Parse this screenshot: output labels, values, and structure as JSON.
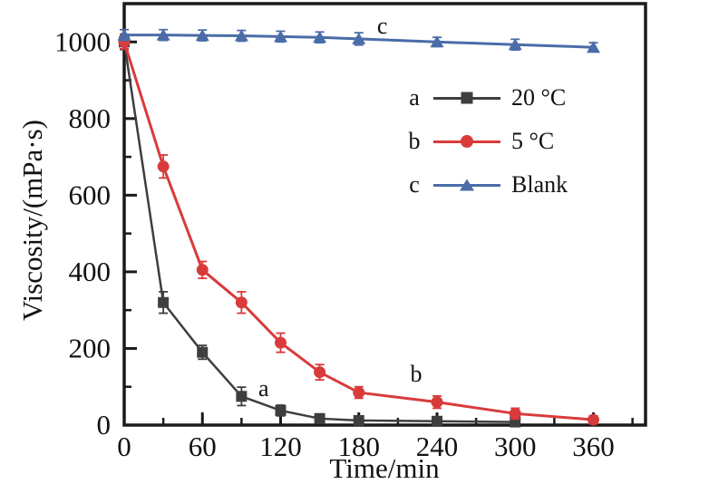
{
  "figure": {
    "background": "#ffffff",
    "frame_color": "#1a1a1a",
    "text_color": "#111111"
  },
  "chart_data": {
    "type": "line",
    "title": "",
    "xlabel": "Time/min",
    "ylabel": "Viscosity/(mPa·s)",
    "xlim": [
      0,
      400
    ],
    "ylim": [
      0,
      1100
    ],
    "x_major_ticks": [
      0,
      60,
      120,
      180,
      240,
      300,
      360
    ],
    "x_minor_ticks": [
      30,
      90,
      150,
      210,
      270,
      330,
      390
    ],
    "y_major_ticks": [
      0,
      200,
      400,
      600,
      800,
      1000
    ],
    "y_minor_ticks": [
      100,
      300,
      500,
      700,
      900,
      1100
    ],
    "grid": false,
    "legend_position": "upper-right-inside",
    "series": [
      {
        "id": "a",
        "name": "20 °C",
        "marker": "square",
        "color": "#3f3e3e",
        "x": [
          0,
          30,
          60,
          90,
          120,
          150,
          180,
          240,
          300
        ],
        "y": [
          1000,
          320,
          190,
          75,
          38,
          17,
          12,
          10,
          8
        ],
        "yerr": [
          20,
          28,
          18,
          24,
          14,
          12,
          10,
          10,
          8
        ]
      },
      {
        "id": "b",
        "name": "5 °C",
        "marker": "circle",
        "color": "#d93b3b",
        "x": [
          0,
          30,
          60,
          90,
          120,
          150,
          180,
          240,
          300,
          360
        ],
        "y": [
          1000,
          675,
          405,
          320,
          215,
          138,
          85,
          60,
          30,
          14
        ],
        "yerr": [
          18,
          30,
          22,
          28,
          25,
          20,
          15,
          16,
          14,
          10
        ]
      },
      {
        "id": "c",
        "name": "Blank",
        "marker": "triangle",
        "color": "#4b6ca8",
        "x": [
          0,
          30,
          60,
          90,
          120,
          150,
          180,
          240,
          300,
          360
        ],
        "y": [
          1018,
          1018,
          1017,
          1016,
          1014,
          1012,
          1008,
          1000,
          993,
          986
        ],
        "yerr": [
          14,
          14,
          14,
          14,
          14,
          14,
          16,
          12,
          14,
          12
        ]
      }
    ],
    "annotations": [
      {
        "text": "a",
        "x": 107,
        "y": 95
      },
      {
        "text": "b",
        "x": 224,
        "y": 133
      },
      {
        "text": "c",
        "x": 198,
        "y": 1042
      }
    ]
  },
  "legend": {
    "items": [
      {
        "letter": "a",
        "label": "20 °C",
        "marker": "square",
        "color": "#3f3e3e"
      },
      {
        "letter": "b",
        "label": "5 °C",
        "marker": "circle",
        "color": "#d93b3b"
      },
      {
        "letter": "c",
        "label": "Blank",
        "marker": "triangle",
        "color": "#4b6ca8"
      }
    ]
  }
}
